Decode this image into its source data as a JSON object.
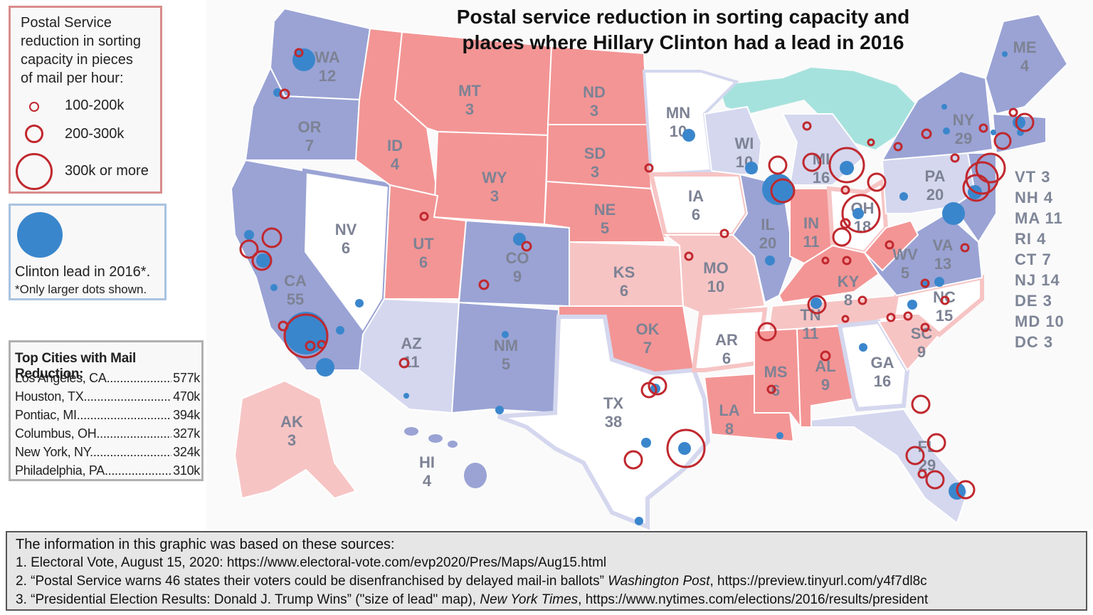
{
  "title_line1": "Postal service reduction in sorting capacity and",
  "title_line2": "places where Hillary Clinton had a lead in 2016",
  "legend_reduction": {
    "heading_lines": [
      "Postal Service",
      "reduction in sorting",
      "capacity in pieces",
      "of mail per hour:"
    ],
    "items": [
      {
        "label": "100-200k"
      },
      {
        "label": "200-300k"
      },
      {
        "label": "300k or more"
      }
    ],
    "ring_color": "#c0282e"
  },
  "legend_clinton": {
    "label": "Clinton lead in 2016*.",
    "note": "*Only larger dots shown.",
    "dot_color": "#3a86cc"
  },
  "top_cities": {
    "title": "Top Cities with Mail Reduction:",
    "rows": [
      {
        "city": "Los Angeles, CA",
        "value": "577k"
      },
      {
        "city": "Houston, TX",
        "value": "470k"
      },
      {
        "city": "Pontiac, MI",
        "value": "394k"
      },
      {
        "city": "Columbus, OH",
        "value": "327k"
      },
      {
        "city": "New York, NY",
        "value": "324k"
      },
      {
        "city": "Philadelphia, PA",
        "value": "310k"
      }
    ]
  },
  "sources": {
    "intro": "The information in this graphic was based on these sources:",
    "s1": "1. Electoral Vote, August 15, 2020: https://www.electoral-vote.com/evp2020/Pres/Maps/Aug15.html",
    "s2a": "2. “Postal Service warns 46 states their voters could be disenfranchised by delayed mail-in ballots” ",
    "s2b": "Washington Post",
    "s2c": ", https://preview.tinyurl.com/y4f7dl8c",
    "s3a": "3. “Presidential Election Results: Donald J. Trump Wins” (\"size of lead\" map), ",
    "s3b": "New York Times",
    "s3c": ", https://www.nytimes.com/elections/2016/results/president"
  },
  "small_states": [
    "VT 3",
    "NH 4",
    "MA 11",
    "RI 4",
    "CT 7",
    "NJ 14",
    "DE 3",
    "MD 10",
    "DC 3"
  ],
  "states": {
    "WA": {
      "abbr": "WA",
      "ev": "12"
    },
    "OR": {
      "abbr": "OR",
      "ev": "7"
    },
    "CA": {
      "abbr": "CA",
      "ev": "55"
    },
    "NV": {
      "abbr": "NV",
      "ev": "6"
    },
    "ID": {
      "abbr": "ID",
      "ev": "4"
    },
    "MT": {
      "abbr": "MT",
      "ev": "3"
    },
    "WY": {
      "abbr": "WY",
      "ev": "3"
    },
    "UT": {
      "abbr": "UT",
      "ev": "6"
    },
    "AZ": {
      "abbr": "AZ",
      "ev": "11"
    },
    "CO": {
      "abbr": "CO",
      "ev": "9"
    },
    "NM": {
      "abbr": "NM",
      "ev": "5"
    },
    "ND": {
      "abbr": "ND",
      "ev": "3"
    },
    "SD": {
      "abbr": "SD",
      "ev": "3"
    },
    "NE": {
      "abbr": "NE",
      "ev": "5"
    },
    "KS": {
      "abbr": "KS",
      "ev": "6"
    },
    "OK": {
      "abbr": "OK",
      "ev": "7"
    },
    "TX": {
      "abbr": "TX",
      "ev": "38"
    },
    "MN": {
      "abbr": "MN",
      "ev": "10"
    },
    "IA": {
      "abbr": "IA",
      "ev": "6"
    },
    "MO": {
      "abbr": "MO",
      "ev": "10"
    },
    "AR": {
      "abbr": "AR",
      "ev": "6"
    },
    "LA": {
      "abbr": "LA",
      "ev": "8"
    },
    "WI": {
      "abbr": "WI",
      "ev": "10"
    },
    "IL": {
      "abbr": "IL",
      "ev": "20"
    },
    "MI": {
      "abbr": "MI",
      "ev": "16"
    },
    "IN": {
      "abbr": "IN",
      "ev": "11"
    },
    "OH": {
      "abbr": "OH",
      "ev": "18"
    },
    "KY": {
      "abbr": "KY",
      "ev": "8"
    },
    "TN": {
      "abbr": "TN",
      "ev": "11"
    },
    "MS": {
      "abbr": "MS",
      "ev": "6"
    },
    "AL": {
      "abbr": "AL",
      "ev": "9"
    },
    "GA": {
      "abbr": "GA",
      "ev": "16"
    },
    "FL": {
      "abbr": "FL",
      "ev": "29"
    },
    "SC": {
      "abbr": "SC",
      "ev": "9"
    },
    "NC": {
      "abbr": "NC",
      "ev": "15"
    },
    "VA": {
      "abbr": "VA",
      "ev": "13"
    },
    "WV": {
      "abbr": "WV",
      "ev": "5"
    },
    "PA": {
      "abbr": "PA",
      "ev": "20"
    },
    "NY": {
      "abbr": "NY",
      "ev": "29"
    },
    "ME": {
      "abbr": "ME",
      "ev": "4"
    },
    "AK": {
      "abbr": "AK",
      "ev": "3"
    },
    "HI": {
      "abbr": "HI",
      "ev": "4"
    }
  },
  "colors": {
    "strong_dem": "#9aa3d4",
    "lean_dem": "#d4d7ee",
    "tossup": "#ffffff",
    "lean_rep": "#f7c4c4",
    "strong_rep": "#f39595",
    "lakes": "#a6e2dd",
    "label": "#7d8294"
  }
}
